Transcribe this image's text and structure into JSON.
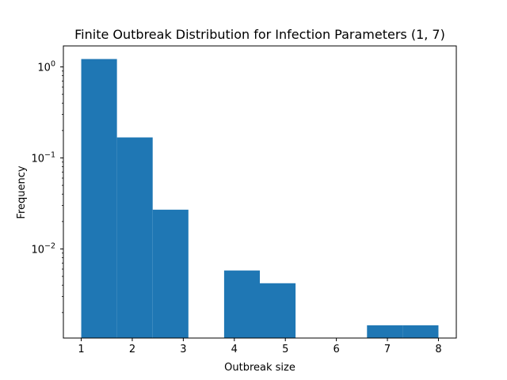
{
  "chart_data": {
    "type": "bar",
    "title": "Finite Outbreak Distribution for Infection Parameters (1, 7)",
    "xlabel": "Outbreak size",
    "ylabel": "Frequency",
    "y_scale": "log",
    "xlim": [
      0.65,
      8.35
    ],
    "ylim": [
      0.00105,
      1.7
    ],
    "x_ticks": [
      1,
      2,
      3,
      4,
      5,
      6,
      7,
      8
    ],
    "x_tick_labels": [
      "1",
      "2",
      "3",
      "4",
      "5",
      "6",
      "7",
      "8"
    ],
    "y_ticks": [
      {
        "value": 1,
        "base": "10",
        "exp": "0"
      },
      {
        "value": 0.1,
        "base": "10",
        "exp": "−1"
      },
      {
        "value": 0.01,
        "base": "10",
        "exp": "−2"
      }
    ],
    "bins": [
      {
        "x0": 1.0,
        "x1": 1.7,
        "value": 1.22
      },
      {
        "x0": 1.7,
        "x1": 2.4,
        "value": 0.168
      },
      {
        "x0": 2.4,
        "x1": 3.1,
        "value": 0.027
      },
      {
        "x0": 3.1,
        "x1": 3.8,
        "value": 0
      },
      {
        "x0": 3.8,
        "x1": 4.5,
        "value": 0.0058
      },
      {
        "x0": 4.5,
        "x1": 5.2,
        "value": 0.0042
      },
      {
        "x0": 5.2,
        "x1": 5.9,
        "value": 0
      },
      {
        "x0": 5.9,
        "x1": 6.6,
        "value": 0
      },
      {
        "x0": 6.6,
        "x1": 7.3,
        "value": 0.00145
      },
      {
        "x0": 7.3,
        "x1": 8.0,
        "value": 0.00145
      }
    ],
    "bar_color": "#1f77b4",
    "grid": false,
    "legend": "none"
  }
}
